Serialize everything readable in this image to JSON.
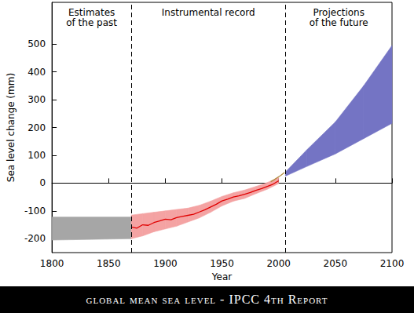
{
  "chart_data": {
    "type": "line",
    "caption": "global mean sea level - IPCC 4th Report",
    "xlabel": "Year",
    "ylabel": "Sea level change (mm)",
    "xlim": [
      1800,
      2100
    ],
    "xticks": [
      1800,
      1850,
      1900,
      1950,
      2000,
      2050,
      2100
    ],
    "ylim": [
      -250,
      650
    ],
    "yticks": [
      -200,
      -100,
      0,
      100,
      200,
      300,
      400,
      500
    ],
    "grid": false,
    "vlines": [
      1870,
      2006
    ],
    "annotations": [
      "Estimates\nof the past",
      "Instrumental record",
      "Projections\nof the future"
    ],
    "series": [
      {
        "type": "band",
        "color": "#a6a6a6",
        "x": [
          1800,
          1870
        ],
        "lower": [
          -205,
          -200
        ],
        "upper": [
          -122,
          -122
        ]
      },
      {
        "type": "band",
        "color": "#f4a3a3",
        "x": [
          1870,
          1880,
          1890,
          1900,
          1910,
          1920,
          1930,
          1940,
          1950,
          1960,
          1970,
          1980,
          1990,
          2000
        ],
        "lower": [
          -200,
          -190,
          -175,
          -165,
          -155,
          -140,
          -125,
          -105,
          -82,
          -65,
          -55,
          -38,
          -22,
          -2
        ],
        "upper": [
          -115,
          -110,
          -105,
          -100,
          -95,
          -90,
          -80,
          -65,
          -48,
          -35,
          -25,
          -12,
          2,
          20
        ]
      },
      {
        "type": "line",
        "color": "#e00000",
        "x": [
          1870,
          1875,
          1880,
          1885,
          1890,
          1895,
          1900,
          1905,
          1910,
          1915,
          1920,
          1925,
          1930,
          1935,
          1940,
          1945,
          1950,
          1955,
          1960,
          1965,
          1970,
          1975,
          1980,
          1985,
          1990,
          1995,
          2000
        ],
        "values": [
          -158,
          -162,
          -150,
          -152,
          -142,
          -136,
          -130,
          -132,
          -124,
          -120,
          -116,
          -112,
          -104,
          -96,
          -86,
          -76,
          -64,
          -58,
          -50,
          -46,
          -40,
          -34,
          -26,
          -20,
          -12,
          -4,
          8
        ]
      },
      {
        "type": "line",
        "color": "#b08a3c",
        "x": [
          1993,
          1996,
          1999,
          2002,
          2005
        ],
        "values": [
          5,
          12,
          20,
          28,
          38
        ]
      },
      {
        "type": "band",
        "color": "#7474c4",
        "x": [
          2006,
          2025,
          2050,
          2075,
          2100
        ],
        "lower": [
          25,
          60,
          105,
          160,
          215
        ],
        "upper": [
          40,
          120,
          220,
          350,
          495
        ]
      }
    ]
  }
}
